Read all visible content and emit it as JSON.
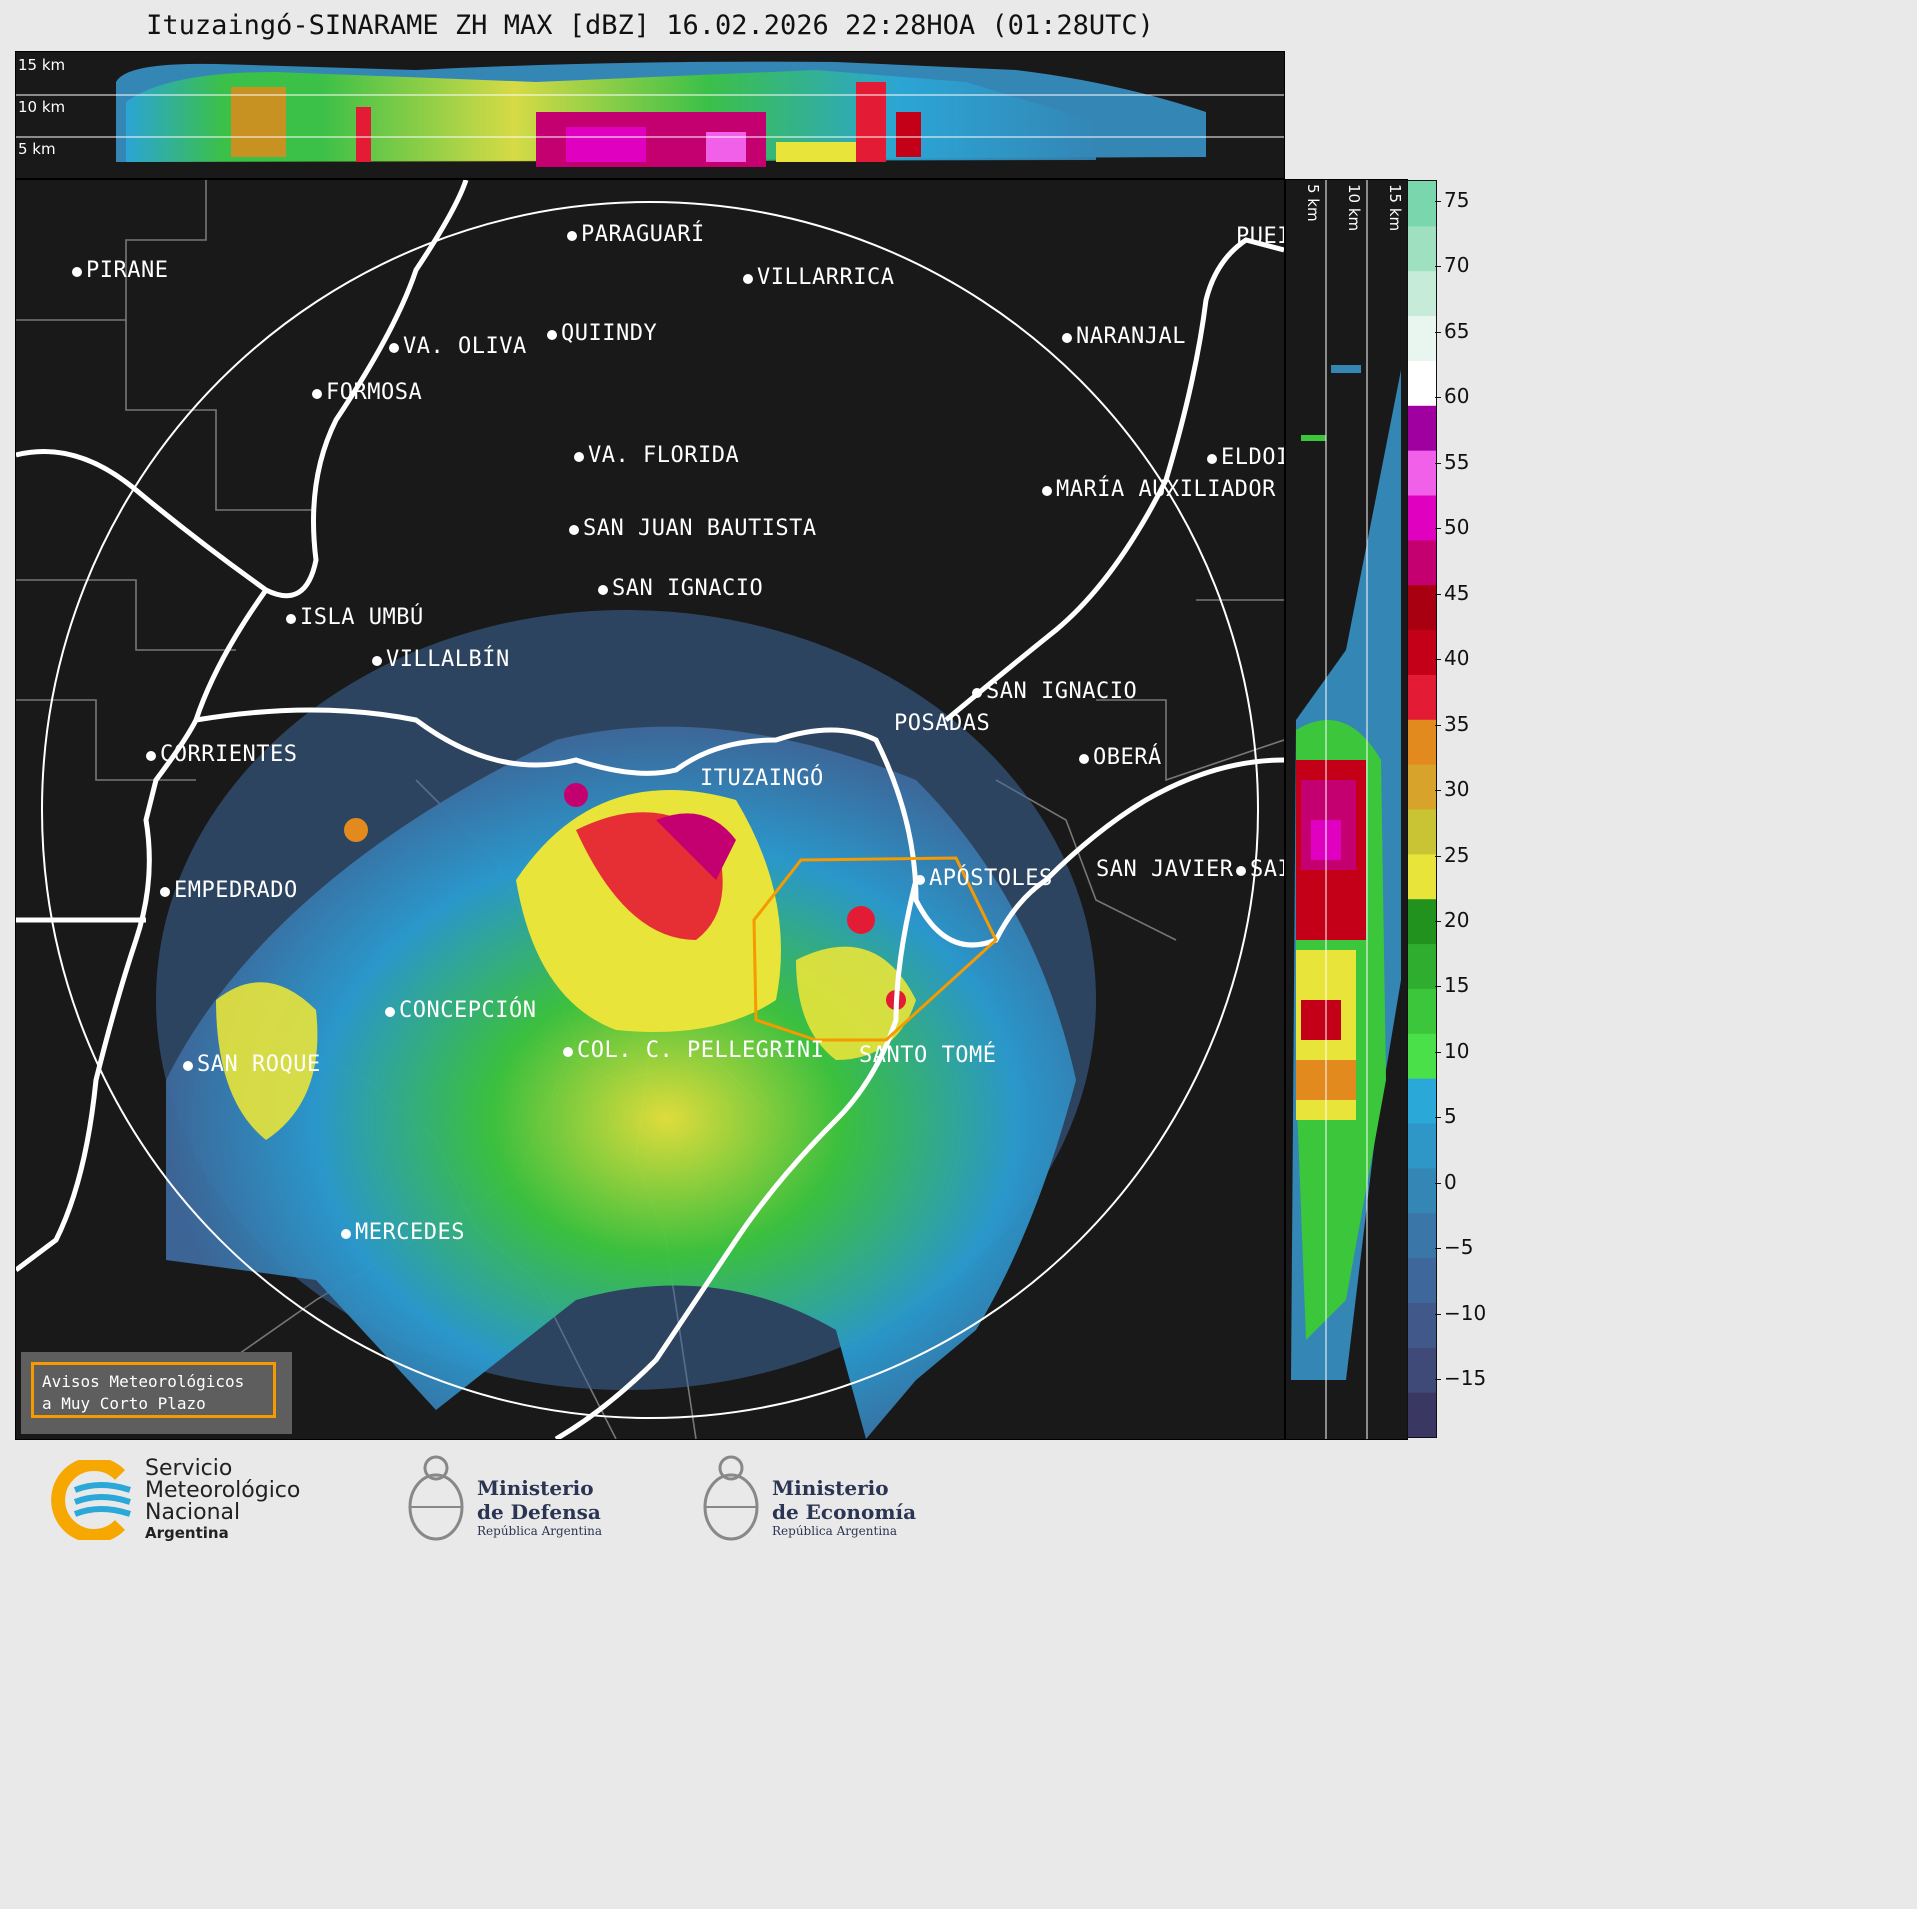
{
  "title": "Ituzaingó-SINARAME ZH MAX [dBZ] 16.02.2026 22:28HOA (01:28UTC)",
  "top_panel": {
    "km_labels": [
      "15 km",
      "10 km",
      "5 km"
    ]
  },
  "side_panel": {
    "km_labels": [
      "5 km",
      "10 km",
      "15 km"
    ]
  },
  "cities": [
    {
      "name": "PIRANE"
    },
    {
      "name": "PARAGUARÍ"
    },
    {
      "name": "VILLARRICA"
    },
    {
      "name": "VA. OLIVA"
    },
    {
      "name": "QUIINDY"
    },
    {
      "name": "FORMOSA"
    },
    {
      "name": "NARANJAL"
    },
    {
      "name": "PUEI"
    },
    {
      "name": "ELDOI"
    },
    {
      "name": "VA. FLORIDA"
    },
    {
      "name": "MARÍA AUXILIADOR"
    },
    {
      "name": "SAN JUAN BAUTISTA"
    },
    {
      "name": "SAN IGNACIO"
    },
    {
      "name": "ISLA UMBÚ"
    },
    {
      "name": "VILLALBÍN"
    },
    {
      "name": "SAN IGNACIO"
    },
    {
      "name": "POSADAS"
    },
    {
      "name": "OBERÁ"
    },
    {
      "name": "CORRIENTES"
    },
    {
      "name": "ITUZAINGÓ"
    },
    {
      "name": "APÓSTOLES"
    },
    {
      "name": "SAN JAVIER"
    },
    {
      "name": "SAI"
    },
    {
      "name": "EMPEDRADO"
    },
    {
      "name": "CONCEPCIÓN"
    },
    {
      "name": "SAN ROQUE"
    },
    {
      "name": "COL. C. PELLEGRINI"
    },
    {
      "name": "SANTO TOMÉ"
    },
    {
      "name": "MERCEDES"
    }
  ],
  "warning_label": [
    "Avisos Meteorológicos",
    "a Muy Corto Plazo"
  ],
  "colorbar": {
    "ticks": [
      "75",
      "70",
      "65",
      "60",
      "55",
      "50",
      "45",
      "40",
      "35",
      "30",
      "25",
      "20",
      "15",
      "10",
      "5",
      "0",
      "−5",
      "−10",
      "−15"
    ],
    "colors": [
      "#3b3763",
      "#3f4a78",
      "#41598a",
      "#3e689b",
      "#3a77a8",
      "#3486b5",
      "#2f97c8",
      "#2aa8d8",
      "#4ae04a",
      "#3cc63c",
      "#2fad2f",
      "#22921f",
      "#e8e43a",
      "#c9c433",
      "#d7a32a",
      "#e28a1d",
      "#e41b35",
      "#c40018",
      "#a80010",
      "#c40070",
      "#e000c0",
      "#f060e8",
      "#a000a0",
      "#ffffff",
      "#e8f6ef",
      "#c6ecd9",
      "#9ee0c0",
      "#7ad6ac"
    ]
  },
  "logos": {
    "smn": [
      "Servicio",
      "Meteorológico",
      "Nacional",
      "Argentina"
    ],
    "defensa": [
      "Ministerio",
      "de Defensa",
      "República Argentina"
    ],
    "economia": [
      "Ministerio",
      "de Economía",
      "República Argentina"
    ]
  }
}
